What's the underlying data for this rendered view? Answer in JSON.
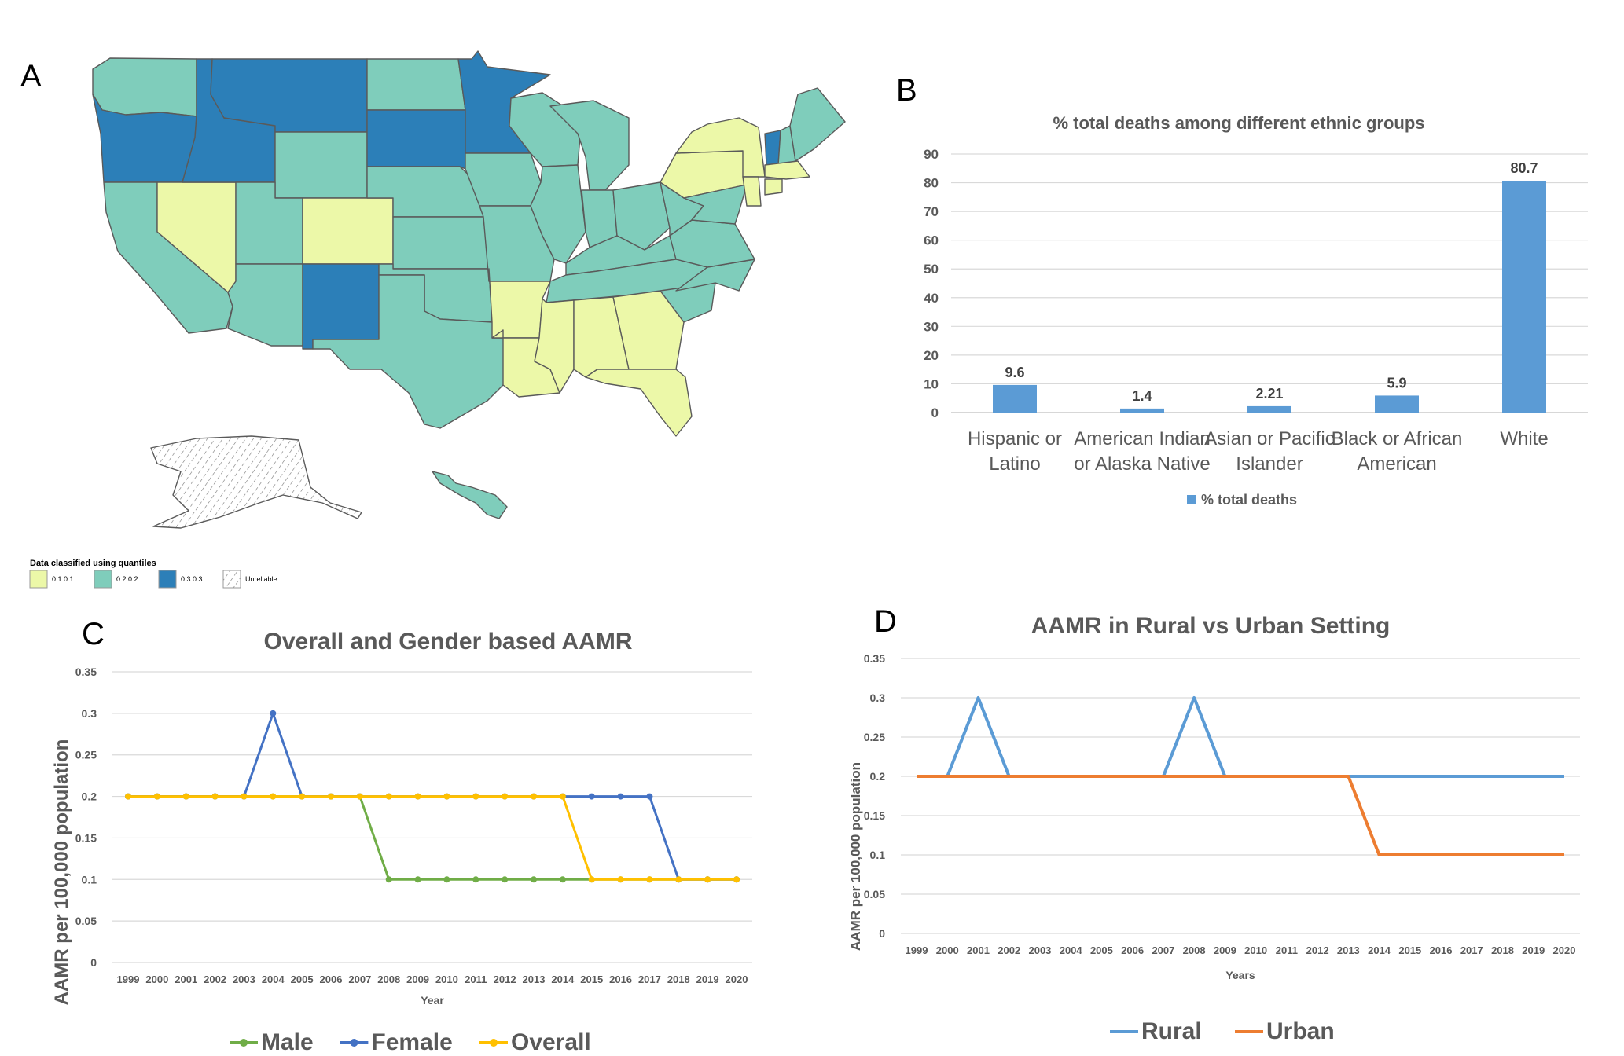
{
  "panels": {
    "a": {
      "label": "A"
    },
    "b": {
      "label": "B"
    },
    "c": {
      "label": "C"
    },
    "d": {
      "label": "D"
    }
  },
  "map": {
    "legend_title": "Data classified using quantiles",
    "legend": [
      {
        "text": "0.1   0.1",
        "color": "#ECF8A8",
        "pattern": false
      },
      {
        "text": "0.2   0.2",
        "color": "#7FCDBB",
        "pattern": false
      },
      {
        "text": "0.3   0.3",
        "color": "#2C7FB8",
        "pattern": false
      },
      {
        "text": "Unreliable",
        "color": "#ffffff",
        "pattern": true
      }
    ],
    "colors": {
      "low": "#ECF8A8",
      "mid": "#7FCDBB",
      "high": "#2C7FB8",
      "border": "#5a5a5a"
    }
  },
  "chart_data": [
    {
      "type": "bar",
      "title": "% total deaths among different ethnic groups",
      "categories": [
        [
          "Hispanic or",
          "Latino"
        ],
        [
          "American Indian",
          "or Alaska Native"
        ],
        [
          "Asian or Pacific",
          "Islander"
        ],
        [
          "Black or African",
          "American"
        ],
        [
          "White"
        ]
      ],
      "series": [
        {
          "name": "% total deaths",
          "values": [
            9.6,
            1.4,
            2.21,
            5.9,
            80.7
          ],
          "color": "#5B9BD5"
        }
      ],
      "data_labels": [
        "9.6",
        "1.4",
        "2.21",
        "5.9",
        "80.7"
      ],
      "ylim": [
        0,
        90
      ],
      "yticks": [
        "0",
        "10",
        "20",
        "30",
        "40",
        "50",
        "60",
        "70",
        "80",
        "90"
      ],
      "legend": "bottom",
      "grid": true
    },
    {
      "type": "line",
      "title": "Overall and Gender based AAMR",
      "xlabel": "Year",
      "ylabel": "AAMR per 100,000 population",
      "x": [
        "1999",
        "2000",
        "2001",
        "2002",
        "2003",
        "2004",
        "2005",
        "2006",
        "2007",
        "2008",
        "2009",
        "2010",
        "2011",
        "2012",
        "2013",
        "2014",
        "2015",
        "2016",
        "2017",
        "2018",
        "2019",
        "2020"
      ],
      "ylim": [
        0,
        0.35
      ],
      "yticks": [
        "0",
        "0.05",
        "0.1",
        "0.15",
        "0.2",
        "0.25",
        "0.3",
        "0.35"
      ],
      "series": [
        {
          "name": "Male",
          "color": "#70AD47",
          "values": [
            0.2,
            0.2,
            0.2,
            0.2,
            0.2,
            0.2,
            0.2,
            0.2,
            0.2,
            0.1,
            0.1,
            0.1,
            0.1,
            0.1,
            0.1,
            0.1,
            0.1,
            0.1,
            0.1,
            0.1,
            0.1,
            0.1
          ]
        },
        {
          "name": "Female",
          "color": "#4472C4",
          "values": [
            0.2,
            0.2,
            0.2,
            0.2,
            0.2,
            0.3,
            0.2,
            0.2,
            0.2,
            0.2,
            0.2,
            0.2,
            0.2,
            0.2,
            0.2,
            0.2,
            0.2,
            0.2,
            0.2,
            0.1,
            0.1,
            0.1
          ]
        },
        {
          "name": "Overall",
          "color": "#FFC000",
          "values": [
            0.2,
            0.2,
            0.2,
            0.2,
            0.2,
            0.2,
            0.2,
            0.2,
            0.2,
            0.2,
            0.2,
            0.2,
            0.2,
            0.2,
            0.2,
            0.2,
            0.1,
            0.1,
            0.1,
            0.1,
            0.1,
            0.1
          ]
        }
      ],
      "markers": true,
      "legend": "bottom",
      "grid": true
    },
    {
      "type": "line",
      "title": "AAMR in Rural vs Urban Setting",
      "xlabel": "Years",
      "ylabel": "AAMR per 100,000 population",
      "x": [
        "1999",
        "2000",
        "2001",
        "2002",
        "2003",
        "2004",
        "2005",
        "2006",
        "2007",
        "2008",
        "2009",
        "2010",
        "2011",
        "2012",
        "2013",
        "2014",
        "2015",
        "2016",
        "2017",
        "2018",
        "2019",
        "2020"
      ],
      "ylim": [
        0,
        0.35
      ],
      "yticks": [
        "0",
        "0.05",
        "0.1",
        "0.15",
        "0.2",
        "0.25",
        "0.3",
        "0.35"
      ],
      "series": [
        {
          "name": "Rural",
          "color": "#5B9BD5",
          "values": [
            0.2,
            0.2,
            0.3,
            0.2,
            0.2,
            0.2,
            0.2,
            0.2,
            0.2,
            0.3,
            0.2,
            0.2,
            0.2,
            0.2,
            0.2,
            0.2,
            0.2,
            0.2,
            0.2,
            0.2,
            0.2,
            0.2
          ]
        },
        {
          "name": "Urban",
          "color": "#ED7D31",
          "values": [
            0.2,
            0.2,
            0.2,
            0.2,
            0.2,
            0.2,
            0.2,
            0.2,
            0.2,
            0.2,
            0.2,
            0.2,
            0.2,
            0.2,
            0.2,
            0.1,
            0.1,
            0.1,
            0.1,
            0.1,
            0.1,
            0.1
          ]
        }
      ],
      "markers": false,
      "legend": "bottom",
      "grid": true
    }
  ]
}
